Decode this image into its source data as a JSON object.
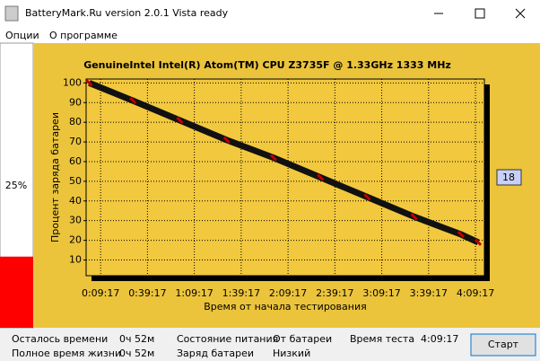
{
  "window": {
    "title": "BatteryMark.Ru version 2.0.1 Vista ready"
  },
  "menu": [
    "Опции",
    "О программе"
  ],
  "battery_gauge": {
    "value": 25,
    "label": "25%"
  },
  "chart_data": {
    "type": "line",
    "title": "GenuineIntel Intel(R) Atom(TM) CPU  Z3735F @ 1.33GHz 1333 MHz",
    "x_label": "Время от начала тестирования",
    "y_label": "Процент заряда батареи",
    "x": [
      120,
      1800,
      3600,
      5400,
      7200,
      9000,
      10800,
      12600,
      14400,
      15060
    ],
    "series": [
      {
        "color": "#c00000",
        "values": [
          100,
          91,
          81,
          71,
          62,
          52,
          42,
          32,
          23,
          19
        ]
      }
    ],
    "xlim": [
      0,
      15300
    ],
    "xticks": [
      {
        "value": 557,
        "label": "0:09:17"
      },
      {
        "value": 2357,
        "label": "0:39:17"
      },
      {
        "value": 4157,
        "label": "1:09:17"
      },
      {
        "value": 5957,
        "label": "1:39:17"
      },
      {
        "value": 7757,
        "label": "2:09:17"
      },
      {
        "value": 9557,
        "label": "2:39:17"
      },
      {
        "value": 11357,
        "label": "3:09:17"
      },
      {
        "value": 13157,
        "label": "3:39:17"
      },
      {
        "value": 14957,
        "label": "4:09:17"
      }
    ],
    "ylim": [
      2,
      102
    ],
    "yticks": [
      10,
      20,
      30,
      40,
      50,
      60,
      70,
      80,
      90,
      100
    ],
    "grid": true
  },
  "badge": 18,
  "status": {
    "remaining_label": "Осталось времени",
    "remaining": "0ч 52м",
    "lifetime_label": "Полное время жизни",
    "lifetime": "0ч 52м",
    "power_label": "Состояние питания",
    "power": "От батареи",
    "charge_label": "Заряд батареи",
    "charge": "Низкий",
    "test_time_label": "Время теста",
    "test_time": "4:09:17"
  },
  "button": "Старт"
}
